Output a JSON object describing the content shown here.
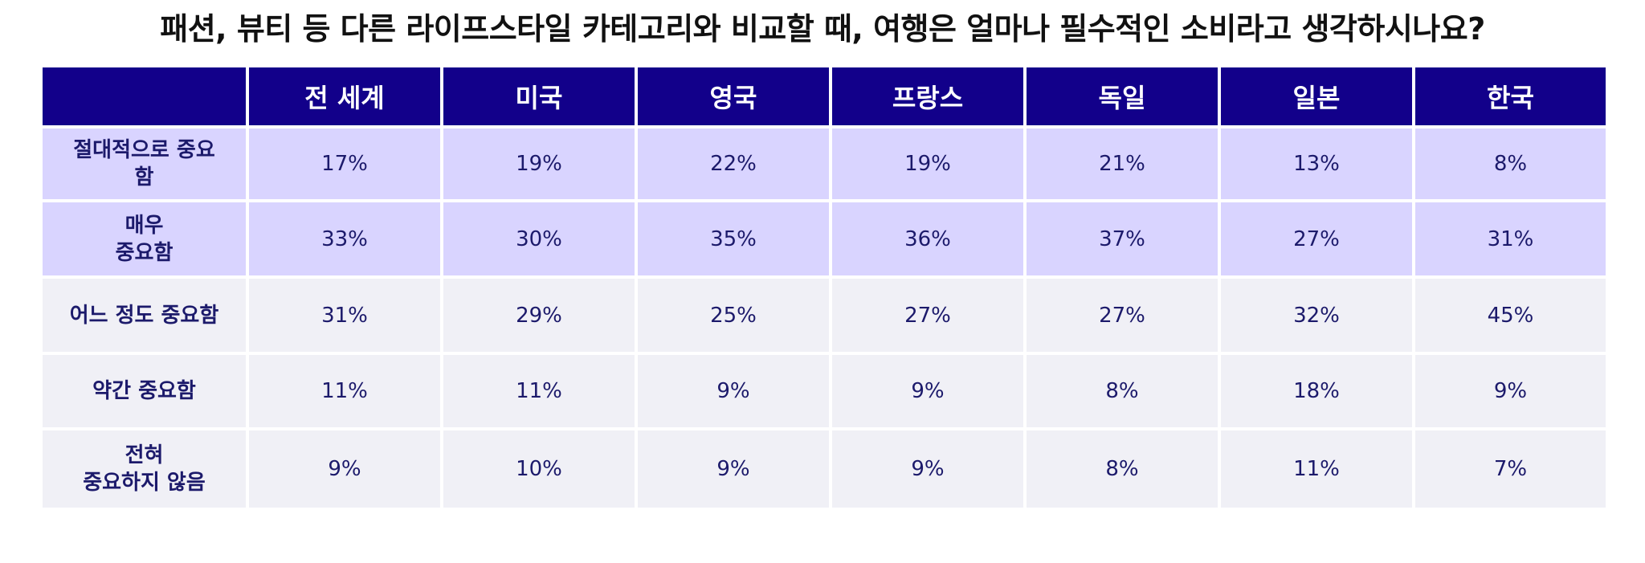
{
  "chart_data": {
    "type": "table",
    "title": "패션, 뷰티 등 다른 라이프스타일 카테고리와 비교할 때, 여행은 얼마나 필수적인 소비라고 생각하시나요?",
    "columns": [
      "",
      "전 세계",
      "미국",
      "영국",
      "프랑스",
      "독일",
      "일본",
      "한국"
    ],
    "rows": [
      {
        "label": "절대적으로 중요\n함",
        "values": [
          "17%",
          "19%",
          "22%",
          "19%",
          "21%",
          "13%",
          "8%"
        ],
        "highlight": true
      },
      {
        "label": "매우\n중요함",
        "values": [
          "33%",
          "30%",
          "35%",
          "36%",
          "37%",
          "27%",
          "31%"
        ],
        "highlight": true
      },
      {
        "label": "어느 정도 중요함",
        "values": [
          "31%",
          "29%",
          "25%",
          "27%",
          "27%",
          "32%",
          "45%"
        ],
        "highlight": false
      },
      {
        "label": "약간 중요함",
        "values": [
          "11%",
          "11%",
          "9%",
          "9%",
          "8%",
          "18%",
          "9%"
        ],
        "highlight": false
      },
      {
        "label": "전혀\n중요하지 않음",
        "values": [
          "9%",
          "10%",
          "9%",
          "9%",
          "8%",
          "11%",
          "7%"
        ],
        "highlight": false
      }
    ],
    "colors": {
      "header_bg": "#12008a",
      "header_text": "#ffffff",
      "highlight_bg": "#d9d4ff",
      "normal_bg": "#f0f0f6",
      "cell_text": "#1c1a6b"
    }
  }
}
